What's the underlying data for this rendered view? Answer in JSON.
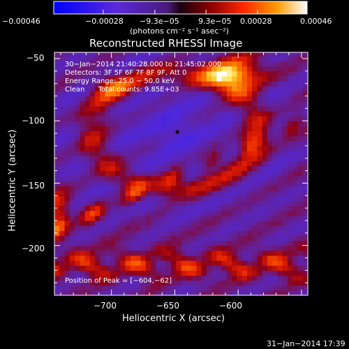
{
  "chart_data": {
    "type": "heatmap",
    "title": "Reconstructed RHESSI Image",
    "xlabel": "Heliocentric X (arcsec)",
    "ylabel": "Heliocentric Y (arcsec)",
    "xlim": [
      -745,
      -545
    ],
    "ylim": [
      -240,
      -45
    ],
    "x_ticks": [
      -700,
      -650,
      -600
    ],
    "x_tick_labels": [
      "−700",
      "−650",
      "−600"
    ],
    "y_ticks": [
      -50,
      -100,
      -150,
      -200
    ],
    "y_tick_labels": [
      "−50",
      "−100",
      "−150",
      "−200"
    ],
    "colorbar": {
      "min": -0.00046,
      "max": 0.00046,
      "ticks": [
        -0.00046,
        -0.00028,
        -9.3e-05,
        9.3e-05,
        0.00028,
        0.00046
      ],
      "tick_labels": [
        "−0.00046",
        "−0.00028",
        "−9.3e−05",
        "9.3e−05",
        "0.00028",
        "0.00046"
      ],
      "units": "(photons cm⁻² s⁻¹ asec⁻²)"
    },
    "annotations": [
      "30−Jan−2014 21:40:28.000 to 21:45:02.000",
      "Detectors: 3F 5F 6F 7F 8F 9F, Att 0",
      "Energy Range: 25.0 − 50.0 keV",
      "Clean      Total counts: 9.85E+03",
      "Position of Peak = [−604,−62]"
    ],
    "peak": [
      -604,
      -62
    ],
    "marker": [
      -648,
      -109
    ],
    "timestamp": "31−Jan−2014 17:39"
  }
}
